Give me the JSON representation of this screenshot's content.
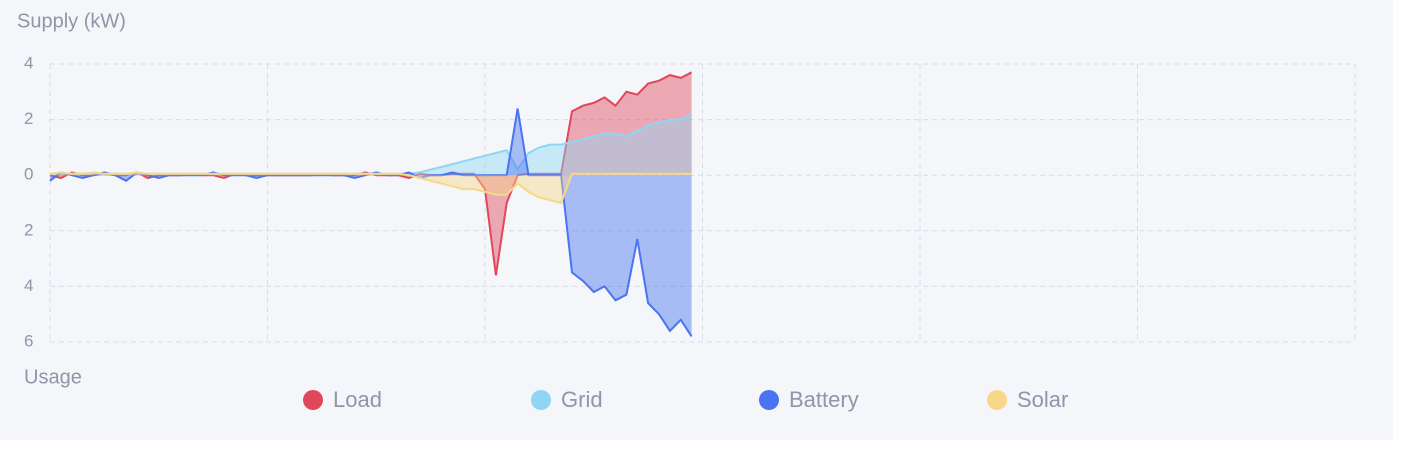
{
  "chart_data": {
    "type": "area",
    "title": "Supply (kW)",
    "negative_label": "Usage",
    "x": [
      0,
      1,
      2,
      3,
      4,
      5,
      6,
      7,
      8,
      9,
      10,
      11,
      12,
      13,
      14,
      15,
      16,
      17,
      18,
      19,
      20,
      21,
      22,
      23,
      24,
      25,
      26,
      27,
      28,
      29,
      30,
      31,
      32,
      33,
      34,
      35,
      36,
      37,
      38,
      39,
      40,
      41,
      42,
      43,
      44,
      45,
      46,
      47,
      48,
      49,
      50,
      51,
      52,
      53,
      54,
      55,
      56,
      57,
      58,
      59
    ],
    "xlim": [
      0,
      120
    ],
    "xticks": [
      0,
      20,
      40,
      60,
      80,
      100,
      120
    ],
    "ylim": [
      -6,
      4
    ],
    "yticks": [
      4,
      2,
      0,
      {
        "value": -2,
        "label": "2"
      },
      {
        "value": -4,
        "label": "4"
      },
      {
        "value": -6,
        "label": "6"
      }
    ],
    "grid": true,
    "series": [
      {
        "name": "Load",
        "color": "#e0485a",
        "values": [
          0,
          -0.1,
          0.1,
          0,
          0,
          0.05,
          0,
          0,
          0.1,
          -0.1,
          0,
          0,
          0,
          0.05,
          0,
          0,
          -0.1,
          0.05,
          0,
          0,
          0,
          0,
          0,
          0,
          0,
          0.05,
          0,
          0,
          0,
          0.1,
          0,
          0,
          0,
          -0.1,
          0.05,
          0,
          0,
          0.05,
          0.05,
          0.05,
          -0.5,
          -3.6,
          -1.0,
          0,
          0.05,
          0.05,
          0.05,
          0.05,
          2.3,
          2.5,
          2.6,
          2.8,
          2.5,
          3.0,
          2.9,
          3.3,
          3.4,
          3.6,
          3.5,
          3.7
        ]
      },
      {
        "name": "Grid",
        "color": "#8fd6f4",
        "values": [
          0.05,
          0.05,
          0.05,
          0.05,
          0.05,
          0.05,
          0.05,
          0.05,
          0.05,
          0.05,
          0.05,
          0.05,
          0.05,
          0.05,
          0.05,
          0.05,
          0.05,
          0.05,
          0.05,
          0.05,
          0.05,
          0.05,
          0.05,
          0.05,
          0.05,
          0.05,
          0.05,
          0.05,
          0.05,
          0.05,
          0.05,
          0.05,
          0.05,
          0.05,
          0.1,
          0.2,
          0.3,
          0.4,
          0.5,
          0.6,
          0.7,
          0.8,
          0.9,
          0.2,
          0.8,
          1.0,
          1.1,
          1.1,
          1.2,
          1.3,
          1.4,
          1.5,
          1.5,
          1.4,
          1.6,
          1.8,
          1.9,
          2.0,
          2.0,
          2.2
        ]
      },
      {
        "name": "Battery",
        "color": "#4a74f0",
        "values": [
          -0.2,
          0.1,
          0,
          -0.1,
          0,
          0.1,
          0,
          -0.2,
          0.1,
          0,
          -0.1,
          0,
          0,
          0,
          0,
          0.1,
          0,
          0,
          0,
          -0.1,
          0,
          0,
          0,
          0,
          0,
          0,
          0,
          0,
          -0.1,
          0,
          0.1,
          0,
          0,
          0.1,
          -0.1,
          0,
          0,
          0.1,
          0,
          0,
          0,
          0,
          0,
          2.4,
          0,
          0,
          0,
          0,
          -3.5,
          -3.8,
          -4.2,
          -4.0,
          -4.5,
          -4.3,
          -2.3,
          -4.6,
          -5.0,
          -5.6,
          -5.2,
          -5.8
        ]
      },
      {
        "name": "Solar",
        "color": "#f7d78a",
        "values": [
          0.05,
          0.1,
          0.05,
          0.05,
          0.1,
          0.05,
          0.05,
          0.05,
          0.1,
          0.05,
          0.05,
          0.05,
          0.05,
          0.05,
          0.05,
          0.05,
          0.05,
          0.05,
          0.05,
          0.05,
          0.05,
          0.05,
          0.05,
          0.05,
          0.05,
          0.05,
          0.05,
          0.05,
          0.05,
          0.05,
          0.05,
          0.05,
          0.05,
          0,
          -0.1,
          -0.2,
          -0.3,
          -0.4,
          -0.5,
          -0.5,
          -0.6,
          -0.7,
          -0.7,
          -0.3,
          -0.6,
          -0.8,
          -0.9,
          -1.0,
          0.05,
          0.05,
          0.05,
          0.05,
          0.05,
          0.05,
          0.05,
          0.05,
          0.05,
          0.05,
          0.05,
          0.05
        ]
      }
    ]
  }
}
